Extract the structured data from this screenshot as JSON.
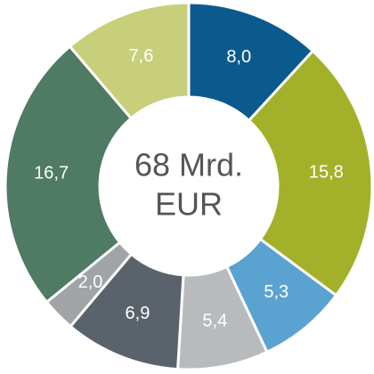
{
  "chart_data": {
    "type": "donut",
    "center_text": [
      "68 Mrd.",
      "EUR"
    ],
    "values": [
      8.0,
      15.8,
      5.3,
      5.4,
      6.9,
      2.0,
      16.7,
      7.6
    ],
    "value_labels": [
      "8,0",
      "15,8",
      "5,3",
      "5,4",
      "6,9",
      "2,0",
      "16,7",
      "7,6"
    ],
    "colors": [
      "#0b5a8e",
      "#a3b12a",
      "#5aa3d0",
      "#b8bbbe",
      "#5a636b",
      "#a0a4a7",
      "#4f7a63",
      "#c8cf7a"
    ]
  }
}
